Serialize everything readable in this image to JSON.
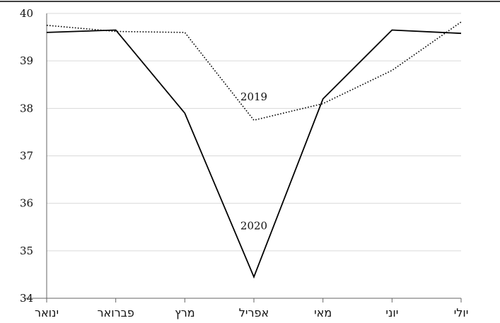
{
  "chart_data": {
    "type": "line",
    "categories": [
      "ינואר",
      "פברואר",
      "מרץ",
      "אפריל",
      "מאי",
      "יוני",
      "יולי"
    ],
    "ylim": [
      34,
      40
    ],
    "yticks": [
      34,
      35,
      36,
      37,
      38,
      39,
      40
    ],
    "grid": true,
    "series": [
      {
        "name": "2020",
        "style": "solid",
        "color": "#000000",
        "values": [
          39.6,
          39.65,
          37.9,
          34.45,
          38.2,
          39.65,
          39.58
        ]
      },
      {
        "name": "2019",
        "style": "dotted",
        "color": "#000000",
        "values": [
          39.75,
          39.62,
          39.6,
          37.75,
          38.1,
          38.8,
          39.82
        ]
      }
    ],
    "annotations": [
      {
        "text": "2019",
        "series": "2019",
        "near_category": "אפריל"
      },
      {
        "text": "2020",
        "series": "2020",
        "near_category": "אפריל"
      }
    ]
  }
}
